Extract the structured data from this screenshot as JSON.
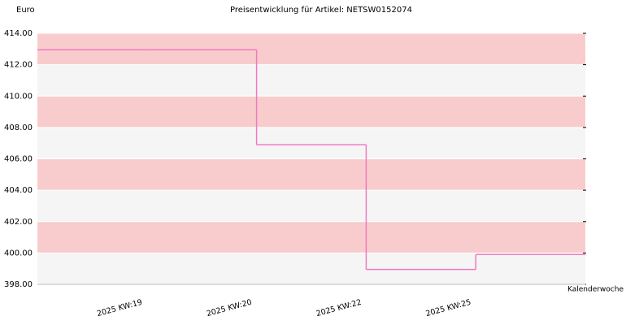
{
  "chart_data": {
    "type": "step-line",
    "title": "Preisentwicklung für Artikel: NETSW0152074",
    "y_label": "Euro",
    "x_label": "Kalenderwoche",
    "categories": [
      "2025 KW:19",
      "2025 KW:20",
      "2025 KW:22",
      "2025 KW:25",
      null
    ],
    "series": [
      {
        "color": "#f07ac0",
        "values": [
          412.95,
          412.95,
          406.9,
          398.95,
          399.9
        ]
      }
    ],
    "ylim": [
      398,
      414
    ],
    "yticks": [
      {
        "value": 398,
        "label": "398.00"
      },
      {
        "value": 400,
        "label": "400.00"
      },
      {
        "value": 402,
        "label": "402.00"
      },
      {
        "value": 404,
        "label": "404.00"
      },
      {
        "value": 406,
        "label": "406.00"
      },
      {
        "value": 408,
        "label": "408.00"
      },
      {
        "value": 410,
        "label": "410.00"
      },
      {
        "value": 412,
        "label": "412.00"
      },
      {
        "value": 414,
        "label": "414.00"
      }
    ],
    "band_colors": [
      "#f5f5f5",
      "#f8cccc"
    ]
  }
}
